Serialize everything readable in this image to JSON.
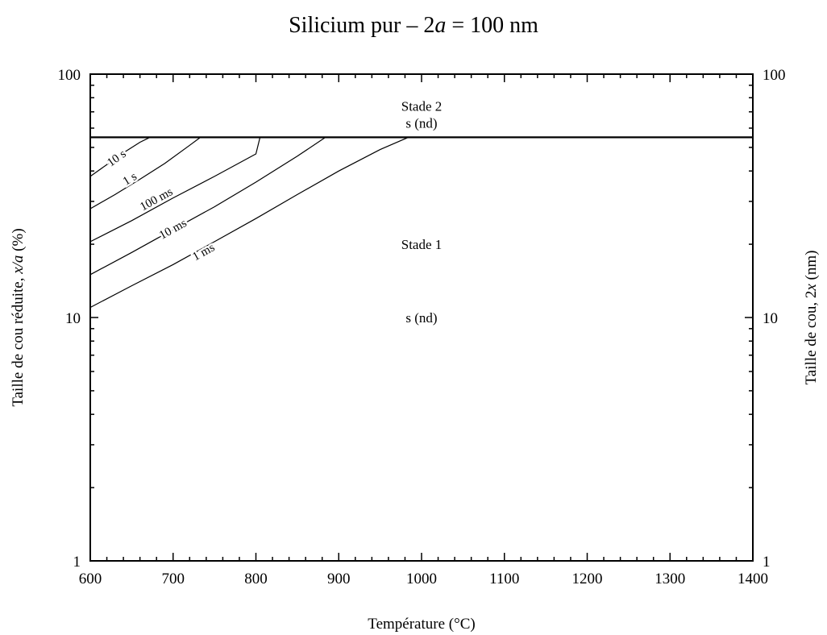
{
  "chart_data": {
    "type": "line",
    "title": "Silicium pur – 2a = 100 nm",
    "title_parts": [
      "Silicium pur – 2",
      "a",
      " = 100 nm"
    ],
    "xlabel": "Température (°C)",
    "ylabel_left": "Taille de cou réduite, x/a (%)",
    "ylabel_left_parts": [
      "Taille de cou réduite, ",
      "x/a",
      " (%)"
    ],
    "ylabel_right": "Taille de cou, 2x (nm)",
    "ylabel_right_parts": [
      "Taille de cou, 2",
      "x",
      " (nm)"
    ],
    "xlim": [
      600,
      1400
    ],
    "ylim": [
      1,
      100
    ],
    "yscale": "log",
    "x_ticks": [
      600,
      700,
      800,
      900,
      1000,
      1100,
      1200,
      1300,
      1400
    ],
    "x_tick_labels": [
      "600",
      "700",
      "800",
      "900",
      "1000",
      "1100",
      "1200",
      "1300",
      "1400"
    ],
    "y_ticks": [
      1,
      10,
      100
    ],
    "y_tick_labels_left": [
      "1",
      "10",
      "100"
    ],
    "y_tick_labels_right": [
      "1",
      "10",
      "100"
    ],
    "grid": false,
    "boundary": {
      "y": 55
    },
    "regions": [
      {
        "lines": [
          "Stade 2",
          "s (nd)"
        ],
        "x": 1000,
        "y": [
          74,
          63
        ]
      },
      {
        "lines": [
          "Stade 1",
          "s (nd)"
        ],
        "x": 1000,
        "y": [
          20,
          10
        ]
      }
    ],
    "series": [
      {
        "name": "10 s",
        "x": [
          600,
          620,
          640,
          660,
          672
        ],
        "y": [
          38,
          42.5,
          47.5,
          52.5,
          55
        ],
        "label_x": 632,
        "label_y": 45
      },
      {
        "name": "1 s",
        "x": [
          600,
          630,
          660,
          690,
          720,
          733
        ],
        "y": [
          28,
          32,
          37,
          43,
          51,
          55
        ],
        "label_x": 648,
        "label_y": 37
      },
      {
        "name": "100 ms",
        "x": [
          600,
          650,
          700,
          750,
          800,
          805
        ],
        "y": [
          20.5,
          25,
          31,
          38,
          47,
          55
        ],
        "label_x": 680,
        "label_y": 30.5
      },
      {
        "name": "10 ms",
        "x": [
          600,
          650,
          700,
          750,
          800,
          850,
          884
        ],
        "y": [
          15,
          18.5,
          23,
          28.5,
          36,
          46,
          55
        ],
        "label_x": 700,
        "label_y": 23
      },
      {
        "name": "1 ms",
        "x": [
          600,
          650,
          700,
          750,
          800,
          850,
          900,
          950,
          984
        ],
        "y": [
          11,
          13.5,
          16.5,
          20.5,
          25.5,
          32,
          40,
          49,
          55
        ],
        "label_x": 737,
        "label_y": 18.5
      }
    ]
  }
}
